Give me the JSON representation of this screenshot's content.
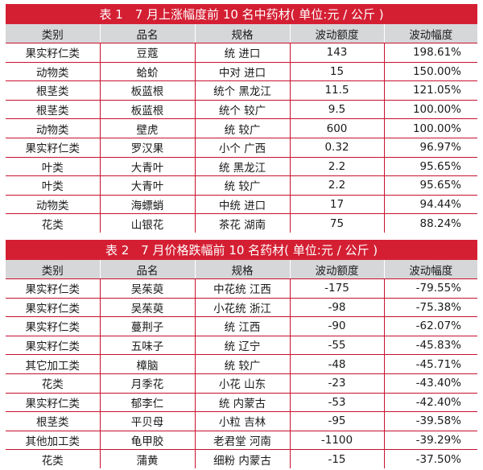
{
  "table1": {
    "title": "表 1　7 月上涨幅度前 10 名中药材( 单位:元 / 公斤 )",
    "headers": [
      "类别",
      "品名",
      "规格",
      "波动额度",
      "波动幅度"
    ],
    "rows": [
      [
        "果实籽仁类",
        "豆蔻",
        "统  进口",
        "143",
        "198.61%"
      ],
      [
        "动物类",
        "蛤蚧",
        "中对  进口",
        "15",
        "150.00%"
      ],
      [
        "根茎类",
        "板蓝根",
        "统个  黑龙江",
        "11.5",
        "121.05%"
      ],
      [
        "根茎类",
        "板蓝根",
        "统个  较广",
        "9.5",
        "100.00%"
      ],
      [
        "动物类",
        "壁虎",
        "统  较广",
        "600",
        "100.00%"
      ],
      [
        "果实籽仁类",
        "罗汉果",
        "小个  广西",
        "0.32",
        "96.97%"
      ],
      [
        "叶类",
        "大青叶",
        "统  黑龙江",
        "2.2",
        "95.65%"
      ],
      [
        "叶类",
        "大青叶",
        "统  较广",
        "2.2",
        "95.65%"
      ],
      [
        "动物类",
        "海螵蛸",
        "中统  进口",
        "17",
        "94.44%"
      ],
      [
        "花类",
        "山银花",
        "茶花  湖南",
        "75",
        "88.24%"
      ]
    ]
  },
  "table2": {
    "title": "表 2　7 月价格跌幅前 10 名药材( 单位:元 / 公斤 )",
    "headers": [
      "类别",
      "品名",
      "规格",
      "波动额度",
      "波动幅度"
    ],
    "rows": [
      [
        "果实籽仁类",
        "吴茱萸",
        "中花统  江西",
        "-175",
        "-79.55%"
      ],
      [
        "果实籽仁类",
        "吴茱萸",
        "小花统  浙江",
        "-98",
        "-75.38%"
      ],
      [
        "果实籽仁类",
        "蔓荆子",
        "统  江西",
        "-90",
        "-62.07%"
      ],
      [
        "果实籽仁类",
        "五味子",
        "统  辽宁",
        "-55",
        "-45.83%"
      ],
      [
        "其它加工类",
        "樟脑",
        "统  较广",
        "-48",
        "-45.71%"
      ],
      [
        "花类",
        "月季花",
        "小花  山东",
        "-23",
        "-43.40%"
      ],
      [
        "果实籽仁类",
        "郁李仁",
        "统  内蒙古",
        "-53",
        "-42.40%"
      ],
      [
        "根茎类",
        "平贝母",
        "小粒  吉林",
        "-95",
        "-39.58%"
      ],
      [
        "其他加工类",
        "龟甲胶",
        "老君堂  河南",
        "-1100",
        "-39.29%"
      ],
      [
        "花类",
        "蒲黄",
        "细粉  内蒙古",
        "-15",
        "-37.50%"
      ]
    ]
  }
}
